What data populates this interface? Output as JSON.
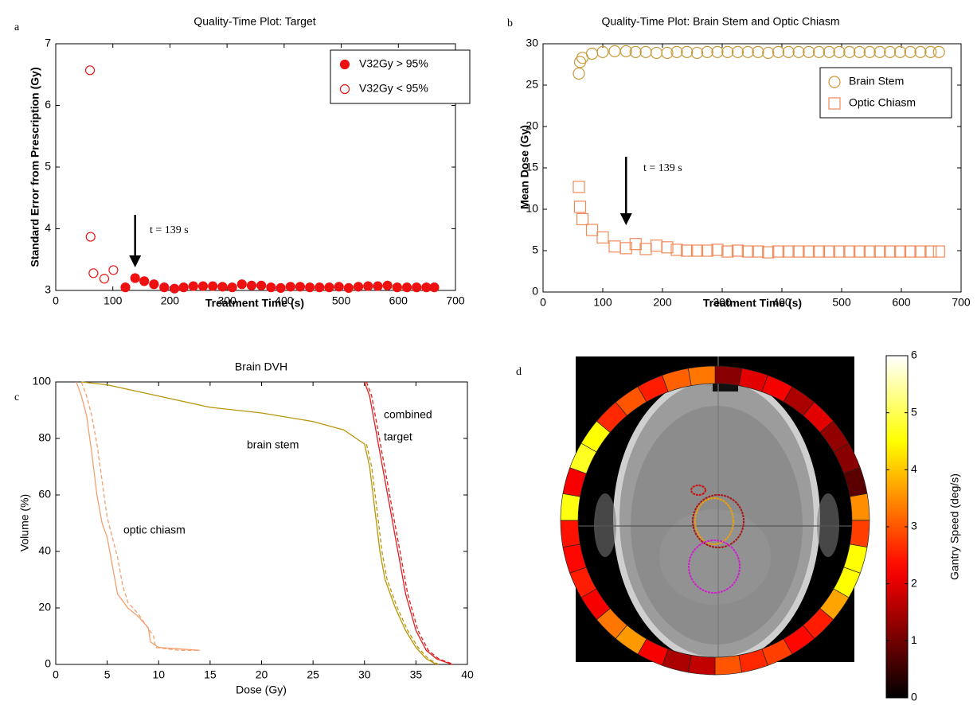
{
  "chart_data": [
    {
      "type": "scatter",
      "panel_label": "a",
      "title": "Quality-Time Plot: Target",
      "x_label": "Treatment Time (s)",
      "y_label": "Standard Error from Prescription (Gy)",
      "xlim": [
        0,
        700
      ],
      "xticks": [
        0,
        100,
        200,
        300,
        400,
        500,
        600,
        700
      ],
      "ylim": [
        3,
        7
      ],
      "yticks": [
        3,
        4,
        5,
        6,
        7
      ],
      "legend": "upper right",
      "annotation": {
        "text": "t = 139 s",
        "x": 139
      },
      "series": [
        {
          "name": "V32Gy > 95%",
          "color": "#ee1111",
          "marker": "circle",
          "filled": true,
          "x": [
            122,
            139,
            155,
            172,
            190,
            208,
            224,
            241,
            258,
            275,
            292,
            309,
            326,
            343,
            360,
            377,
            394,
            411,
            428,
            445,
            462,
            479,
            496,
            513,
            530,
            547,
            564,
            581,
            598,
            615,
            632,
            649,
            663
          ],
          "values": [
            3.05,
            3.2,
            3.15,
            3.1,
            3.05,
            3.03,
            3.05,
            3.07,
            3.07,
            3.07,
            3.06,
            3.05,
            3.1,
            3.08,
            3.08,
            3.05,
            3.04,
            3.06,
            3.06,
            3.05,
            3.05,
            3.05,
            3.06,
            3.04,
            3.06,
            3.07,
            3.07,
            3.08,
            3.05,
            3.05,
            3.05,
            3.05,
            3.05
          ]
        },
        {
          "name": "V32Gy < 95%",
          "color": "#ee1111",
          "marker": "circle",
          "filled": false,
          "x": [
            60,
            61,
            66,
            85,
            101
          ],
          "values": [
            6.57,
            3.87,
            3.28,
            3.19,
            3.33
          ]
        }
      ]
    },
    {
      "type": "scatter",
      "panel_label": "b",
      "title": "Quality-Time Plot: Brain Stem and Optic Chiasm",
      "x_label": "Treatment Time (s)",
      "y_label": "Mean Dose (Gy)",
      "xlim": [
        0,
        700
      ],
      "xticks": [
        0,
        100,
        200,
        300,
        400,
        500,
        600,
        700
      ],
      "ylim": [
        0,
        30
      ],
      "yticks": [
        0,
        5,
        10,
        15,
        20,
        25,
        30
      ],
      "legend": "upper right",
      "annotation": {
        "text": "t = 139 s",
        "x": 139
      },
      "series": [
        {
          "name": "Brain Stem",
          "color": "#c89a3c",
          "marker": "circle",
          "filled": false,
          "x": [
            60,
            62,
            66,
            82,
            100,
            120,
            139,
            155,
            172,
            190,
            208,
            224,
            241,
            258,
            275,
            292,
            309,
            326,
            343,
            360,
            377,
            394,
            411,
            428,
            445,
            462,
            479,
            496,
            513,
            530,
            547,
            564,
            581,
            598,
            615,
            632,
            649,
            663
          ],
          "values": [
            26.4,
            27.8,
            28.3,
            28.8,
            29,
            29.1,
            29.1,
            29,
            29,
            28.9,
            28.9,
            29,
            29,
            28.9,
            29,
            29,
            29,
            29,
            29,
            29,
            28.9,
            29,
            29,
            29,
            29,
            29,
            29,
            29,
            29,
            29,
            29,
            29,
            29,
            29,
            29,
            29,
            29,
            29
          ]
        },
        {
          "name": "Optic Chiasm",
          "color": "#f08a5a",
          "marker": "square",
          "filled": false,
          "x": [
            60,
            62,
            66,
            82,
            100,
            120,
            139,
            155,
            172,
            190,
            208,
            224,
            241,
            258,
            275,
            292,
            309,
            326,
            343,
            360,
            377,
            394,
            411,
            428,
            445,
            462,
            479,
            496,
            513,
            530,
            547,
            564,
            581,
            598,
            615,
            632,
            649,
            663
          ],
          "values": [
            12.7,
            10.3,
            8.8,
            7.5,
            6.6,
            5.5,
            5.3,
            5.8,
            5.2,
            5.6,
            5.4,
            5.1,
            5.0,
            5.0,
            5.0,
            5.1,
            4.9,
            5.0,
            4.9,
            4.9,
            4.8,
            4.9,
            4.9,
            4.9,
            4.9,
            4.9,
            4.9,
            4.9,
            4.9,
            4.9,
            4.9,
            4.9,
            4.9,
            4.9,
            4.9,
            4.9,
            4.9,
            4.9
          ]
        }
      ]
    },
    {
      "type": "line",
      "panel_label": "c",
      "title": "Brain DVH",
      "x_label": "Dose (Gy)",
      "y_label": "Volume (%)",
      "xlim": [
        0,
        40
      ],
      "xticks": [
        0,
        5,
        10,
        15,
        20,
        25,
        30,
        35,
        40
      ],
      "ylim": [
        0,
        100
      ],
      "yticks": [
        0,
        20,
        40,
        60,
        80,
        100
      ],
      "annotations": [
        {
          "text": "optic chiasm"
        },
        {
          "text": "brain stem"
        },
        {
          "text": "combined"
        },
        {
          "text": "target"
        }
      ],
      "series": [
        {
          "color": "#f4a070",
          "dashed": false,
          "x": [
            2,
            2.5,
            3,
            3.5,
            4,
            4.5,
            5,
            5.5,
            6,
            7,
            8,
            9,
            9.2,
            10,
            14
          ],
          "values": [
            100,
            95,
            88,
            75,
            60,
            50,
            45,
            35,
            25,
            20,
            17,
            13,
            8,
            6,
            5
          ]
        },
        {
          "color": "#f4a070",
          "dashed": true,
          "x": [
            2.5,
            3,
            3.5,
            4,
            4.5,
            5,
            5.5,
            6,
            6.5,
            7,
            8,
            9.5,
            9.7,
            12,
            14
          ],
          "values": [
            100,
            95,
            88,
            78,
            65,
            52,
            45,
            38,
            28,
            22,
            18,
            10,
            6,
            5,
            5
          ]
        },
        {
          "color": "#b8960a",
          "dashed": false,
          "x": [
            2.5,
            5,
            10,
            15,
            20,
            25,
            28,
            30,
            30.5,
            31,
            31.5,
            32,
            33,
            34,
            35,
            36,
            37
          ],
          "values": [
            100,
            99,
            95,
            91,
            89,
            86,
            83,
            78,
            70,
            55,
            40,
            30,
            20,
            12,
            6,
            2,
            0
          ]
        },
        {
          "color": "#b8960a",
          "dashed": true,
          "x": [
            30.2,
            30.7,
            31.2,
            31.7,
            32.2,
            33.2,
            34.2,
            35.2,
            36.2,
            37.2
          ],
          "values": [
            78,
            70,
            55,
            40,
            30,
            20,
            12,
            6,
            2,
            0
          ]
        },
        {
          "color": "#e02020",
          "dashed": false,
          "x": [
            30,
            30.5,
            31,
            31.5,
            32,
            32.5,
            33,
            33.5,
            34,
            35,
            36,
            37,
            38.5
          ],
          "values": [
            100,
            95,
            85,
            75,
            65,
            55,
            45,
            35,
            25,
            12,
            5,
            2,
            0
          ]
        },
        {
          "color": "#e02020",
          "dashed": true,
          "x": [
            30.2,
            30.7,
            31.2,
            31.7,
            32.2,
            32.7,
            33.2,
            33.7,
            34.2,
            35.2,
            36.2,
            37.2,
            38.7
          ],
          "values": [
            100,
            95,
            85,
            75,
            65,
            55,
            45,
            35,
            25,
            12,
            5,
            2,
            0
          ]
        }
      ]
    },
    {
      "type": "ring",
      "panel_label": "d",
      "colorbar_label": "Gantry Speed (deg/s)",
      "colormap": "hot",
      "clim": [
        0,
        6
      ],
      "cticks": [
        0,
        1,
        2,
        3,
        4,
        5,
        6
      ],
      "values": [
        1.2,
        2.0,
        2.2,
        1.5,
        2.0,
        1.3,
        1.2,
        0.8,
        3.5,
        2.8,
        4.5,
        4.5,
        3.7,
        2.5,
        2.3,
        2.8,
        2.6,
        3.0,
        1.7,
        1.5,
        2.2,
        3.6,
        3.3,
        2.2,
        2.5,
        2.3,
        2.4,
        4.6,
        2.2,
        4.7,
        4.5,
        2.6,
        3.0,
        2.5,
        3.1,
        3.3
      ]
    }
  ]
}
